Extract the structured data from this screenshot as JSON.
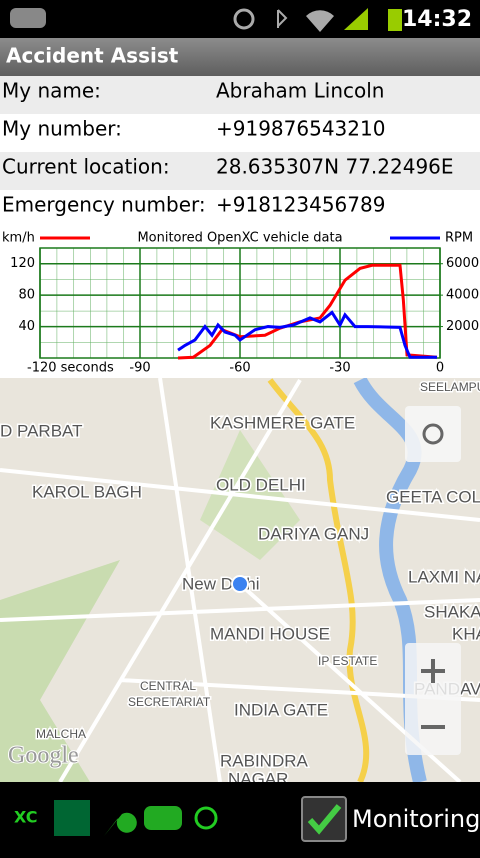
{
  "status_bar": {
    "time": "14:32"
  },
  "app_bar": {
    "title": "Accident Assist"
  },
  "info": {
    "rows": [
      [
        "My name:",
        "Abraham Lincoln"
      ],
      [
        "My number:",
        "+919876543210"
      ],
      [
        "Current location:",
        "28.635307N 77.22496E"
      ],
      [
        "Emergency number:",
        "+918123456789"
      ]
    ]
  },
  "chart_data": {
    "type": "line",
    "title": "Monitored OpenXC vehicle data",
    "xlim": [
      -120,
      0
    ],
    "xticks": [
      {
        "value": -120,
        "label": "-120 seconds"
      },
      -90,
      -60,
      -30,
      0
    ],
    "ylim": [
      0,
      140
    ],
    "yticks": [
      40,
      80,
      120
    ],
    "y2lim": [
      0,
      7000
    ],
    "y2ticks": [
      2000,
      4000,
      6000
    ],
    "grid": true,
    "series": [
      {
        "name": "km/h",
        "color": "#ff0000",
        "x": [
          -78.6,
          -74,
          -69,
          -65.4,
          -60,
          -52.5,
          -48,
          -42,
          -36,
          -33,
          -28.5,
          -24,
          -20.4,
          -12,
          -11,
          -9.9,
          -0.9
        ],
        "values": [
          0,
          1,
          16,
          36,
          27,
          29,
          38,
          46,
          51,
          67,
          99,
          114,
          118,
          118,
          74,
          4,
          1
        ]
      },
      {
        "name": "RPM",
        "color": "#0000ff",
        "axis": "y2",
        "x": [
          -78.6,
          -76.5,
          -73.5,
          -70.5,
          -68.4,
          -66.6,
          -64.5,
          -61.5,
          -60,
          -55.5,
          -51.6,
          -48,
          -44,
          -39,
          -36,
          -32.4,
          -30,
          -28.5,
          -25.5,
          -21.6,
          -12,
          -10.5,
          -9,
          -0.9
        ],
        "values": [
          500,
          800,
          1150,
          2000,
          1450,
          2100,
          1650,
          1450,
          1150,
          1800,
          2000,
          1950,
          2100,
          2550,
          2300,
          2900,
          2100,
          2750,
          2000,
          2000,
          1950,
          800,
          50,
          50
        ]
      }
    ]
  },
  "map": {
    "labels": [
      "D PARBAT",
      "KASHMERE GATE",
      "SEELAMPUR",
      "KAROL BAGH",
      "OLD DELHI",
      "GEETA COLO",
      "DARIYA GANJ",
      "New Delhi",
      "LAXMI NA",
      "SHAKAR",
      "KHA",
      "MANDI HOUSE",
      "IP ESTATE",
      "CENTRAL",
      "SECRETARIAT",
      "PANDAV",
      "INDIA GATE",
      "MALCHA",
      "RABINDRA",
      "NAGAR"
    ],
    "watermark": "Google"
  },
  "bottom_bar": {
    "logo": "XC",
    "checkbox": {
      "label": "Monitoring",
      "checked": true
    }
  }
}
